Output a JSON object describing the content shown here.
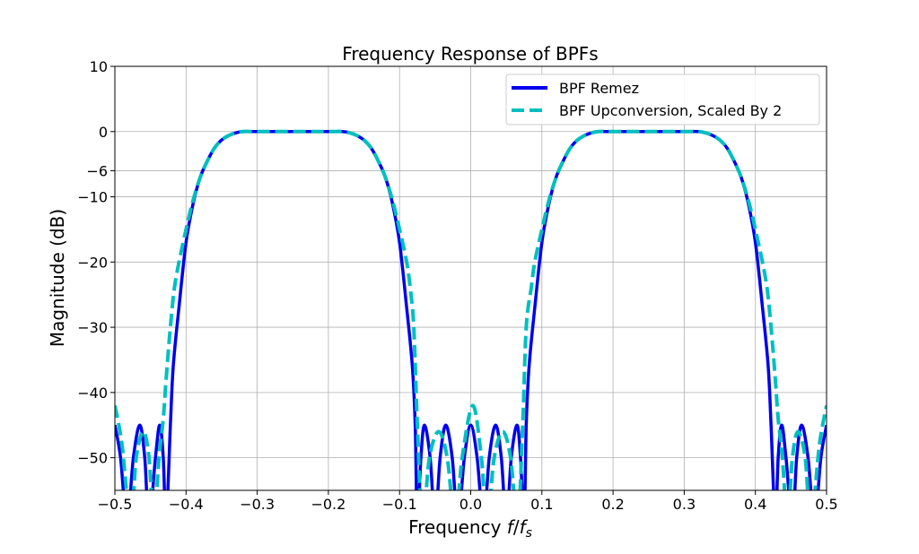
{
  "chart_data": {
    "type": "line",
    "title": "Frequency Response of BPFs",
    "xlabel_main": "Frequency ",
    "xlabel_var": "f",
    "xlabel_sep": "/",
    "xlabel_var2": "f",
    "xlabel_sub": "s",
    "ylabel": "Magnitude (dB)",
    "xlim": [
      -0.5,
      0.5
    ],
    "ylim": [
      -55,
      10
    ],
    "grid": true,
    "legend_position": "top-right",
    "xticks": [
      -0.5,
      -0.4,
      -0.3,
      -0.2,
      -0.1,
      0.0,
      0.1,
      0.2,
      0.3,
      0.4,
      0.5
    ],
    "xtick_labels": [
      "−0.5",
      "−0.4",
      "−0.3",
      "−0.2",
      "−0.1",
      "0.0",
      "0.1",
      "0.2",
      "0.3",
      "0.4",
      "0.5"
    ],
    "yticks": [
      10,
      0,
      -6,
      -10,
      -20,
      -30,
      -40,
      -50
    ],
    "ytick_labels": [
      "10",
      "0",
      "−6",
      "−10",
      "−20",
      "−30",
      "−40",
      "−50"
    ],
    "series": [
      {
        "name": "BPF Remez",
        "color": "#0000ee",
        "style": "solid",
        "points": [
          [
            -0.5,
            -45
          ],
          [
            -0.492,
            -50
          ],
          [
            -0.483,
            -60
          ],
          [
            -0.474,
            -50
          ],
          [
            -0.465,
            -45
          ],
          [
            -0.458,
            -50
          ],
          [
            -0.452,
            -60
          ],
          [
            -0.443,
            -50
          ],
          [
            -0.437,
            -45
          ],
          [
            -0.432,
            -50
          ],
          [
            -0.428,
            -60
          ],
          [
            -0.422,
            -45
          ],
          [
            -0.418,
            -36
          ],
          [
            -0.41,
            -27
          ],
          [
            -0.4,
            -17
          ],
          [
            -0.39,
            -11
          ],
          [
            -0.38,
            -7
          ],
          [
            -0.37,
            -4.5
          ],
          [
            -0.36,
            -2.5
          ],
          [
            -0.35,
            -1.3
          ],
          [
            -0.34,
            -0.6
          ],
          [
            -0.33,
            -0.2
          ],
          [
            -0.32,
            0
          ],
          [
            -0.3,
            0
          ],
          [
            -0.25,
            0
          ],
          [
            -0.2,
            0
          ],
          [
            -0.18,
            0
          ],
          [
            -0.17,
            -0.2
          ],
          [
            -0.16,
            -0.6
          ],
          [
            -0.15,
            -1.3
          ],
          [
            -0.14,
            -2.5
          ],
          [
            -0.13,
            -4.5
          ],
          [
            -0.12,
            -7
          ],
          [
            -0.11,
            -11
          ],
          [
            -0.1,
            -17
          ],
          [
            -0.09,
            -27
          ],
          [
            -0.082,
            -36
          ],
          [
            -0.078,
            -45
          ],
          [
            -0.075,
            -60
          ],
          [
            -0.07,
            -50
          ],
          [
            -0.065,
            -45
          ],
          [
            -0.057,
            -50
          ],
          [
            -0.05,
            -60
          ],
          [
            -0.043,
            -50
          ],
          [
            -0.035,
            -45
          ],
          [
            -0.026,
            -50
          ],
          [
            -0.018,
            -60
          ],
          [
            -0.009,
            -50
          ],
          [
            0,
            -45
          ],
          [
            0.009,
            -50
          ],
          [
            0.018,
            -60
          ],
          [
            0.026,
            -50
          ],
          [
            0.035,
            -45
          ],
          [
            0.043,
            -50
          ],
          [
            0.05,
            -60
          ],
          [
            0.057,
            -50
          ],
          [
            0.065,
            -45
          ],
          [
            0.07,
            -50
          ],
          [
            0.075,
            -60
          ],
          [
            0.078,
            -45
          ],
          [
            0.082,
            -36
          ],
          [
            0.09,
            -27
          ],
          [
            0.1,
            -17
          ],
          [
            0.11,
            -11
          ],
          [
            0.12,
            -7
          ],
          [
            0.13,
            -4.5
          ],
          [
            0.14,
            -2.5
          ],
          [
            0.15,
            -1.3
          ],
          [
            0.16,
            -0.6
          ],
          [
            0.17,
            -0.2
          ],
          [
            0.18,
            0
          ],
          [
            0.2,
            0
          ],
          [
            0.25,
            0
          ],
          [
            0.3,
            0
          ],
          [
            0.32,
            0
          ],
          [
            0.33,
            -0.2
          ],
          [
            0.34,
            -0.6
          ],
          [
            0.35,
            -1.3
          ],
          [
            0.36,
            -2.5
          ],
          [
            0.37,
            -4.5
          ],
          [
            0.38,
            -7
          ],
          [
            0.39,
            -11
          ],
          [
            0.4,
            -17
          ],
          [
            0.41,
            -27
          ],
          [
            0.418,
            -36
          ],
          [
            0.422,
            -45
          ],
          [
            0.428,
            -60
          ],
          [
            0.432,
            -50
          ],
          [
            0.437,
            -45
          ],
          [
            0.443,
            -50
          ],
          [
            0.452,
            -60
          ],
          [
            0.458,
            -50
          ],
          [
            0.465,
            -45
          ],
          [
            0.474,
            -50
          ],
          [
            0.483,
            -60
          ],
          [
            0.492,
            -50
          ],
          [
            0.5,
            -45
          ]
        ]
      },
      {
        "name": "BPF Upconversion, Scaled By 2",
        "color": "#00bfbf",
        "style": "dashed",
        "points": [
          [
            -0.5,
            -42
          ],
          [
            -0.49,
            -48
          ],
          [
            -0.478,
            -60
          ],
          [
            -0.47,
            -50
          ],
          [
            -0.46,
            -46
          ],
          [
            -0.452,
            -50
          ],
          [
            -0.445,
            -60
          ],
          [
            -0.438,
            -50
          ],
          [
            -0.432,
            -44
          ],
          [
            -0.428,
            -38
          ],
          [
            -0.422,
            -30
          ],
          [
            -0.415,
            -23
          ],
          [
            -0.4,
            -15
          ],
          [
            -0.39,
            -10.5
          ],
          [
            -0.38,
            -7
          ],
          [
            -0.37,
            -4.5
          ],
          [
            -0.36,
            -2.5
          ],
          [
            -0.35,
            -1.3
          ],
          [
            -0.34,
            -0.6
          ],
          [
            -0.33,
            -0.2
          ],
          [
            -0.32,
            0
          ],
          [
            -0.3,
            0
          ],
          [
            -0.25,
            0
          ],
          [
            -0.2,
            0
          ],
          [
            -0.18,
            0
          ],
          [
            -0.17,
            -0.2
          ],
          [
            -0.16,
            -0.6
          ],
          [
            -0.15,
            -1.3
          ],
          [
            -0.14,
            -2.5
          ],
          [
            -0.13,
            -4.5
          ],
          [
            -0.12,
            -7
          ],
          [
            -0.11,
            -10.5
          ],
          [
            -0.1,
            -15
          ],
          [
            -0.09,
            -20
          ],
          [
            -0.085,
            -24
          ],
          [
            -0.08,
            -30
          ],
          [
            -0.075,
            -45
          ],
          [
            -0.068,
            -60
          ],
          [
            -0.058,
            -50
          ],
          [
            -0.045,
            -46
          ],
          [
            -0.033,
            -50
          ],
          [
            -0.022,
            -60
          ],
          [
            -0.012,
            -50
          ],
          [
            0.003,
            -42
          ],
          [
            0.015,
            -50
          ],
          [
            0.023,
            -60
          ],
          [
            0.033,
            -50
          ],
          [
            0.045,
            -46
          ],
          [
            0.056,
            -50
          ],
          [
            0.066,
            -60
          ],
          [
            0.073,
            -45
          ],
          [
            0.078,
            -30
          ],
          [
            0.085,
            -24
          ],
          [
            0.09,
            -20
          ],
          [
            0.1,
            -15
          ],
          [
            0.11,
            -10.5
          ],
          [
            0.12,
            -7
          ],
          [
            0.13,
            -4.5
          ],
          [
            0.14,
            -2.5
          ],
          [
            0.15,
            -1.3
          ],
          [
            0.16,
            -0.6
          ],
          [
            0.17,
            -0.2
          ],
          [
            0.18,
            0
          ],
          [
            0.2,
            0
          ],
          [
            0.25,
            0
          ],
          [
            0.3,
            0
          ],
          [
            0.32,
            0
          ],
          [
            0.33,
            -0.2
          ],
          [
            0.34,
            -0.6
          ],
          [
            0.35,
            -1.3
          ],
          [
            0.36,
            -2.5
          ],
          [
            0.37,
            -4.5
          ],
          [
            0.38,
            -7
          ],
          [
            0.39,
            -10.5
          ],
          [
            0.4,
            -15
          ],
          [
            0.415,
            -23
          ],
          [
            0.422,
            -30
          ],
          [
            0.428,
            -38
          ],
          [
            0.432,
            -44
          ],
          [
            0.438,
            -50
          ],
          [
            0.445,
            -60
          ],
          [
            0.452,
            -50
          ],
          [
            0.46,
            -46
          ],
          [
            0.47,
            -50
          ],
          [
            0.478,
            -60
          ],
          [
            0.49,
            -48
          ],
          [
            0.5,
            -42
          ]
        ]
      }
    ]
  }
}
